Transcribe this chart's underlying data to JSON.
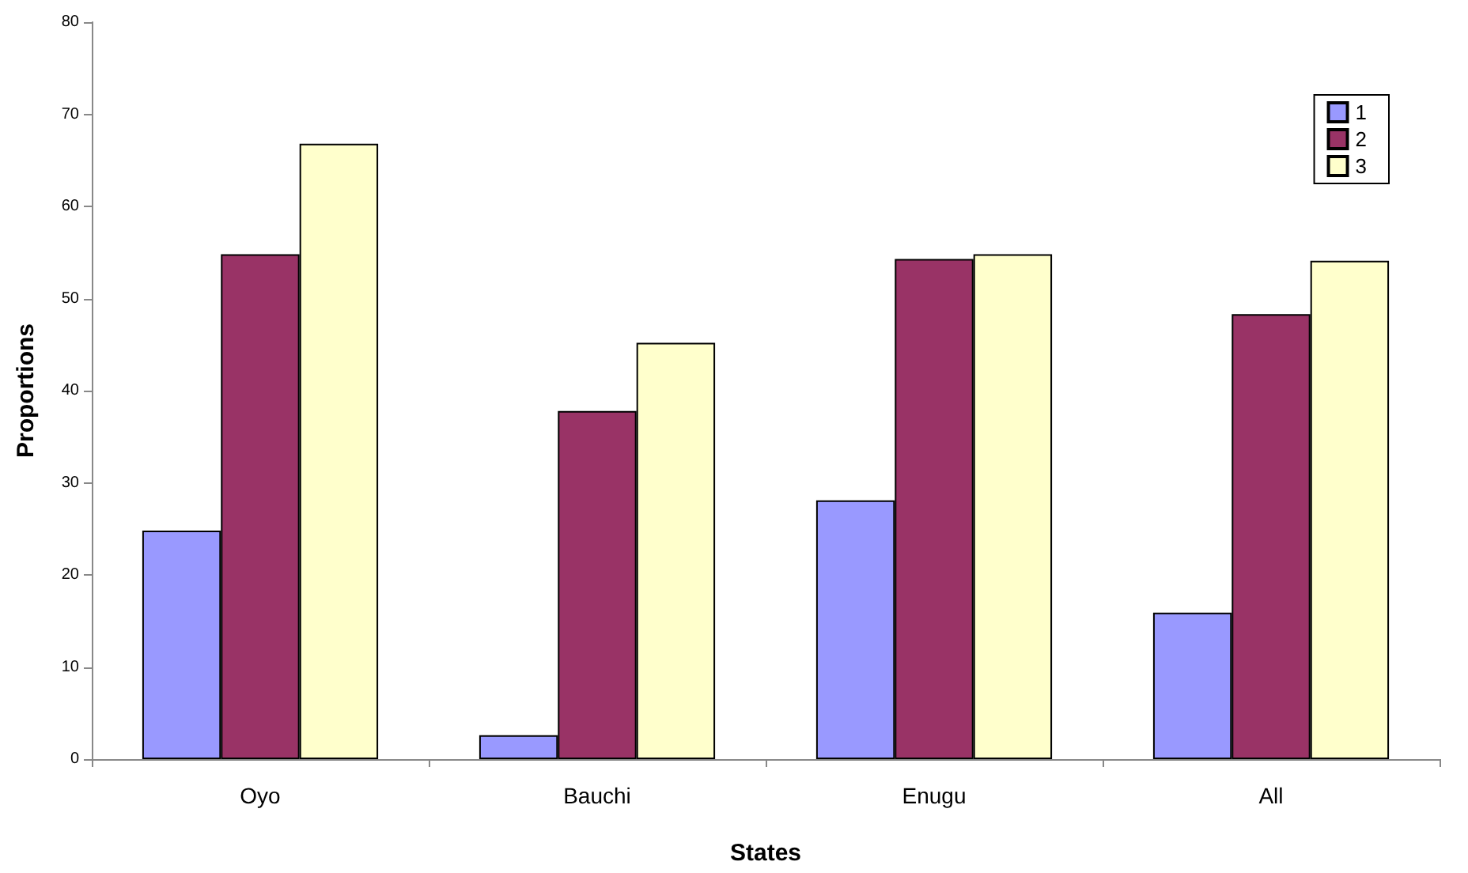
{
  "chart_data": {
    "type": "bar",
    "xlabel": "States",
    "ylabel": "Proportions",
    "categories": [
      "Oyo",
      "Bauchi",
      "Enugu",
      "All"
    ],
    "series": [
      {
        "name": "1",
        "color": "#9999ff",
        "values": [
          24.8,
          2.6,
          28.1,
          15.9
        ]
      },
      {
        "name": "2",
        "color": "#993366",
        "values": [
          54.8,
          37.8,
          54.3,
          48.3
        ]
      },
      {
        "name": "3",
        "color": "#ffffcc",
        "values": [
          66.8,
          45.2,
          54.8,
          54.1
        ]
      }
    ],
    "ylim": [
      0,
      80
    ],
    "yticks": [
      0,
      10,
      20,
      30,
      40,
      50,
      60,
      70,
      80
    ],
    "grid": false,
    "legend": "top right"
  }
}
